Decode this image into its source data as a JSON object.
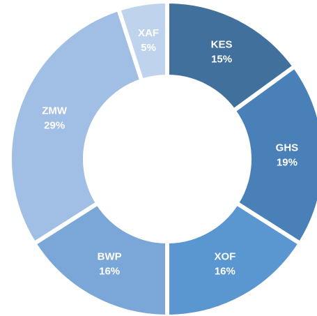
{
  "chart_data": {
    "type": "donut",
    "categories": [
      "KES",
      "GHS",
      "XOF",
      "BWP",
      "ZMW",
      "XAF"
    ],
    "values": [
      15,
      19,
      16,
      16,
      29,
      5
    ],
    "value_labels": [
      "15%",
      "19%",
      "16%",
      "16%",
      "29%",
      "5%"
    ],
    "colors": [
      "#41709c",
      "#4a80b8",
      "#5a96d0",
      "#7aa6d8",
      "#a1bee4",
      "#c0d3ec"
    ]
  }
}
